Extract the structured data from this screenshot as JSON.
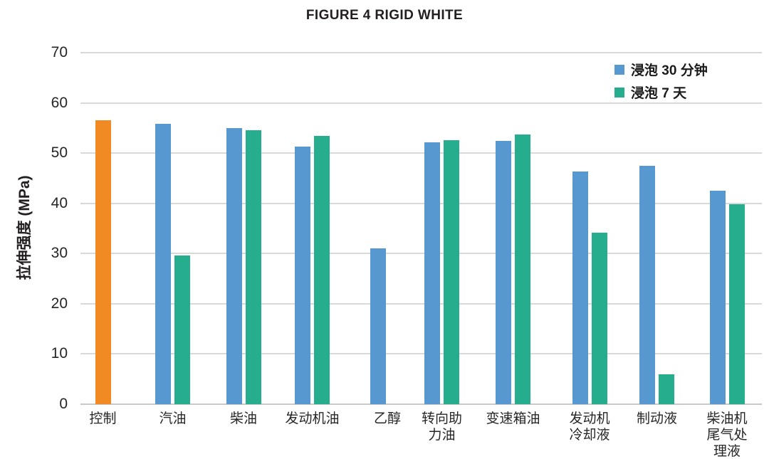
{
  "chart_data": {
    "type": "bar",
    "title": "FIGURE 4 RIGID WHITE",
    "xlabel": "",
    "ylabel": "拉伸强度 (MPa)",
    "ylim": [
      0,
      70
    ],
    "yticks": [
      0,
      10,
      20,
      30,
      40,
      50,
      60,
      70
    ],
    "grid": true,
    "legend_position": "top-right-inside",
    "categories": [
      "控制",
      "汽油",
      "柴油",
      "发动机油",
      "乙醇",
      "转向助力油",
      "变速箱油",
      "发动机冷却液",
      "制动液",
      "柴油机尾气处理液"
    ],
    "category_label_lines": [
      [
        "控制"
      ],
      [
        "汽油"
      ],
      [
        "柴油"
      ],
      [
        "发动机油"
      ],
      [
        "乙醇"
      ],
      [
        "转向助",
        "力油"
      ],
      [
        "变速箱油"
      ],
      [
        "发动机",
        "冷却液"
      ],
      [
        "制动液"
      ],
      [
        "柴油机",
        "尾气处",
        "理液"
      ]
    ],
    "series": [
      {
        "name": "控制",
        "role": "control",
        "color": "#f18a22",
        "values": [
          56.5,
          null,
          null,
          null,
          null,
          null,
          null,
          null,
          null,
          null
        ]
      },
      {
        "name": "浸泡 30 分钟",
        "role": "soak-30min",
        "color": "#5898d0",
        "values": [
          null,
          55.8,
          55.0,
          51.3,
          31.0,
          52.1,
          52.4,
          46.3,
          47.5,
          42.5
        ]
      },
      {
        "name": "浸泡 7 天",
        "role": "soak-7days",
        "color": "#25ad8d",
        "values": [
          null,
          29.6,
          54.6,
          53.4,
          null,
          52.6,
          53.7,
          34.2,
          5.9,
          39.8
        ]
      }
    ],
    "colors": {
      "control": "#f18a22",
      "soak_30min": "#5898d0",
      "soak_7days": "#25ad8d",
      "gridline": "#d9d9d9",
      "text": "#262626"
    }
  }
}
